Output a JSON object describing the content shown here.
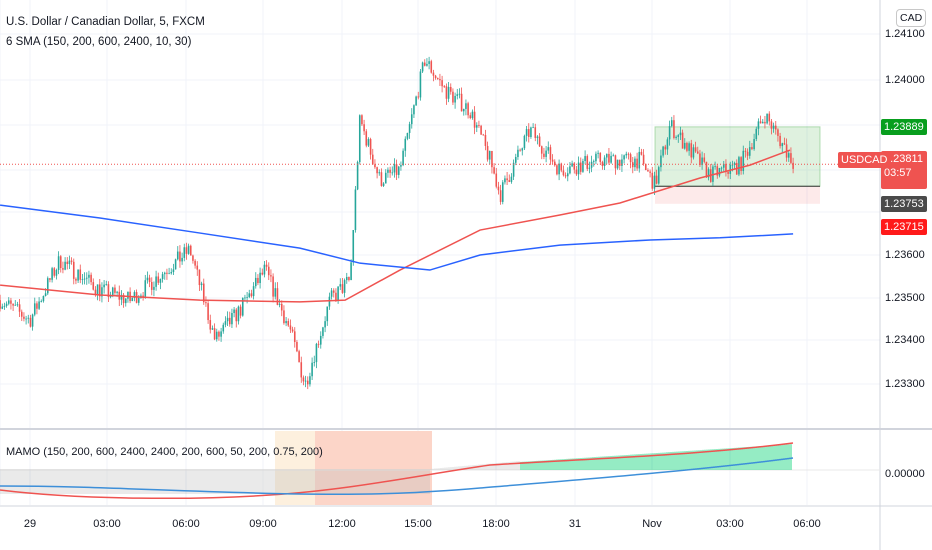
{
  "header": {
    "title": "U.S. Dollar / Canadian Dollar, 5, FXCM",
    "indicator": "6 SMA (150, 200, 600, 2400, 10, 30)",
    "currency_button": "CAD"
  },
  "sub_pane": {
    "indicator": "MAMO (150, 200, 600, 2400, 2400, 200, 600, 50, 200, 0.75, 200)",
    "zero_label": "0.00000"
  },
  "price_axis": {
    "ticks": [
      "1.24100",
      "1.24000",
      "1.23600",
      "1.23500",
      "1.23400",
      "1.23300"
    ]
  },
  "labels": {
    "symbol": "USDCAD",
    "last_price": "1.23811",
    "countdown": "03:57",
    "upper": "1.23889",
    "mid": "1.23753",
    "lower": "1.23715"
  },
  "time_axis": {
    "ticks": [
      "29",
      "03:00",
      "06:00",
      "09:00",
      "12:00",
      "15:00",
      "18:00",
      "31",
      "Nov",
      "03:00",
      "06:00"
    ]
  },
  "colors": {
    "up": "#26a69a",
    "down": "#ef5350",
    "sma_red": "#ef5350",
    "sma_blue": "#2962ff",
    "green_label": "#089e1e",
    "red_label": "#ff1a1a"
  },
  "chart_data": {
    "type": "candlestick",
    "title": "U.S. Dollar / Canadian Dollar, 5, FXCM",
    "ylim": [
      1.2325,
      1.242
    ],
    "price_path_hours_from_29": [
      [
        -1.15,
        1.23495
      ],
      [
        0,
        1.23449
      ],
      [
        1.15,
        1.23588
      ],
      [
        2.69,
        1.23519
      ],
      [
        3.85,
        1.23495
      ],
      [
        6.15,
        1.23612
      ],
      [
        7.12,
        1.23402
      ],
      [
        8.08,
        1.23472
      ],
      [
        9.04,
        1.23565
      ],
      [
        10,
        1.23426
      ],
      [
        10.58,
        1.23298
      ],
      [
        11.54,
        1.23495
      ],
      [
        12.31,
        1.23542
      ],
      [
        12.69,
        1.23914
      ],
      [
        13.46,
        1.23774
      ],
      [
        14.23,
        1.23798
      ],
      [
        15.19,
        1.24054
      ],
      [
        15.96,
        1.23984
      ],
      [
        16.92,
        1.23937
      ],
      [
        17.69,
        1.23821
      ],
      [
        18.08,
        1.2374
      ],
      [
        19.23,
        1.23891
      ],
      [
        20.38,
        1.23798
      ],
      [
        21.92,
        1.23821
      ],
      [
        23.46,
        1.23821
      ],
      [
        24.04,
        1.23763
      ],
      [
        24.62,
        1.23902
      ],
      [
        25.38,
        1.23844
      ],
      [
        26.15,
        1.23786
      ],
      [
        27.31,
        1.23809
      ],
      [
        28.27,
        1.23926
      ],
      [
        28.85,
        1.23867
      ],
      [
        29.42,
        1.23811
      ]
    ],
    "sma_red": [
      [
        -1.15,
        1.2353
      ],
      [
        2.69,
        1.23507
      ],
      [
        6.54,
        1.23495
      ],
      [
        10.38,
        1.23491
      ],
      [
        12.12,
        1.23495
      ],
      [
        14.23,
        1.23565
      ],
      [
        17.31,
        1.23658
      ],
      [
        20.38,
        1.23693
      ],
      [
        22.69,
        1.23721
      ],
      [
        25.77,
        1.23779
      ],
      [
        27.69,
        1.23809
      ],
      [
        29.23,
        1.23844
      ]
    ],
    "sma_blue": [
      [
        -1.15,
        1.23716
      ],
      [
        2.69,
        1.23686
      ],
      [
        6.54,
        1.23651
      ],
      [
        10.38,
        1.23616
      ],
      [
        12.69,
        1.23581
      ],
      [
        15.38,
        1.23565
      ],
      [
        17.31,
        1.236
      ],
      [
        20.38,
        1.23623
      ],
      [
        23.85,
        1.23635
      ],
      [
        26.54,
        1.2364
      ],
      [
        29.35,
        1.23649
      ]
    ],
    "zone": {
      "top": 1.23898,
      "mid": 1.2376,
      "bottom": 1.23719
    }
  }
}
